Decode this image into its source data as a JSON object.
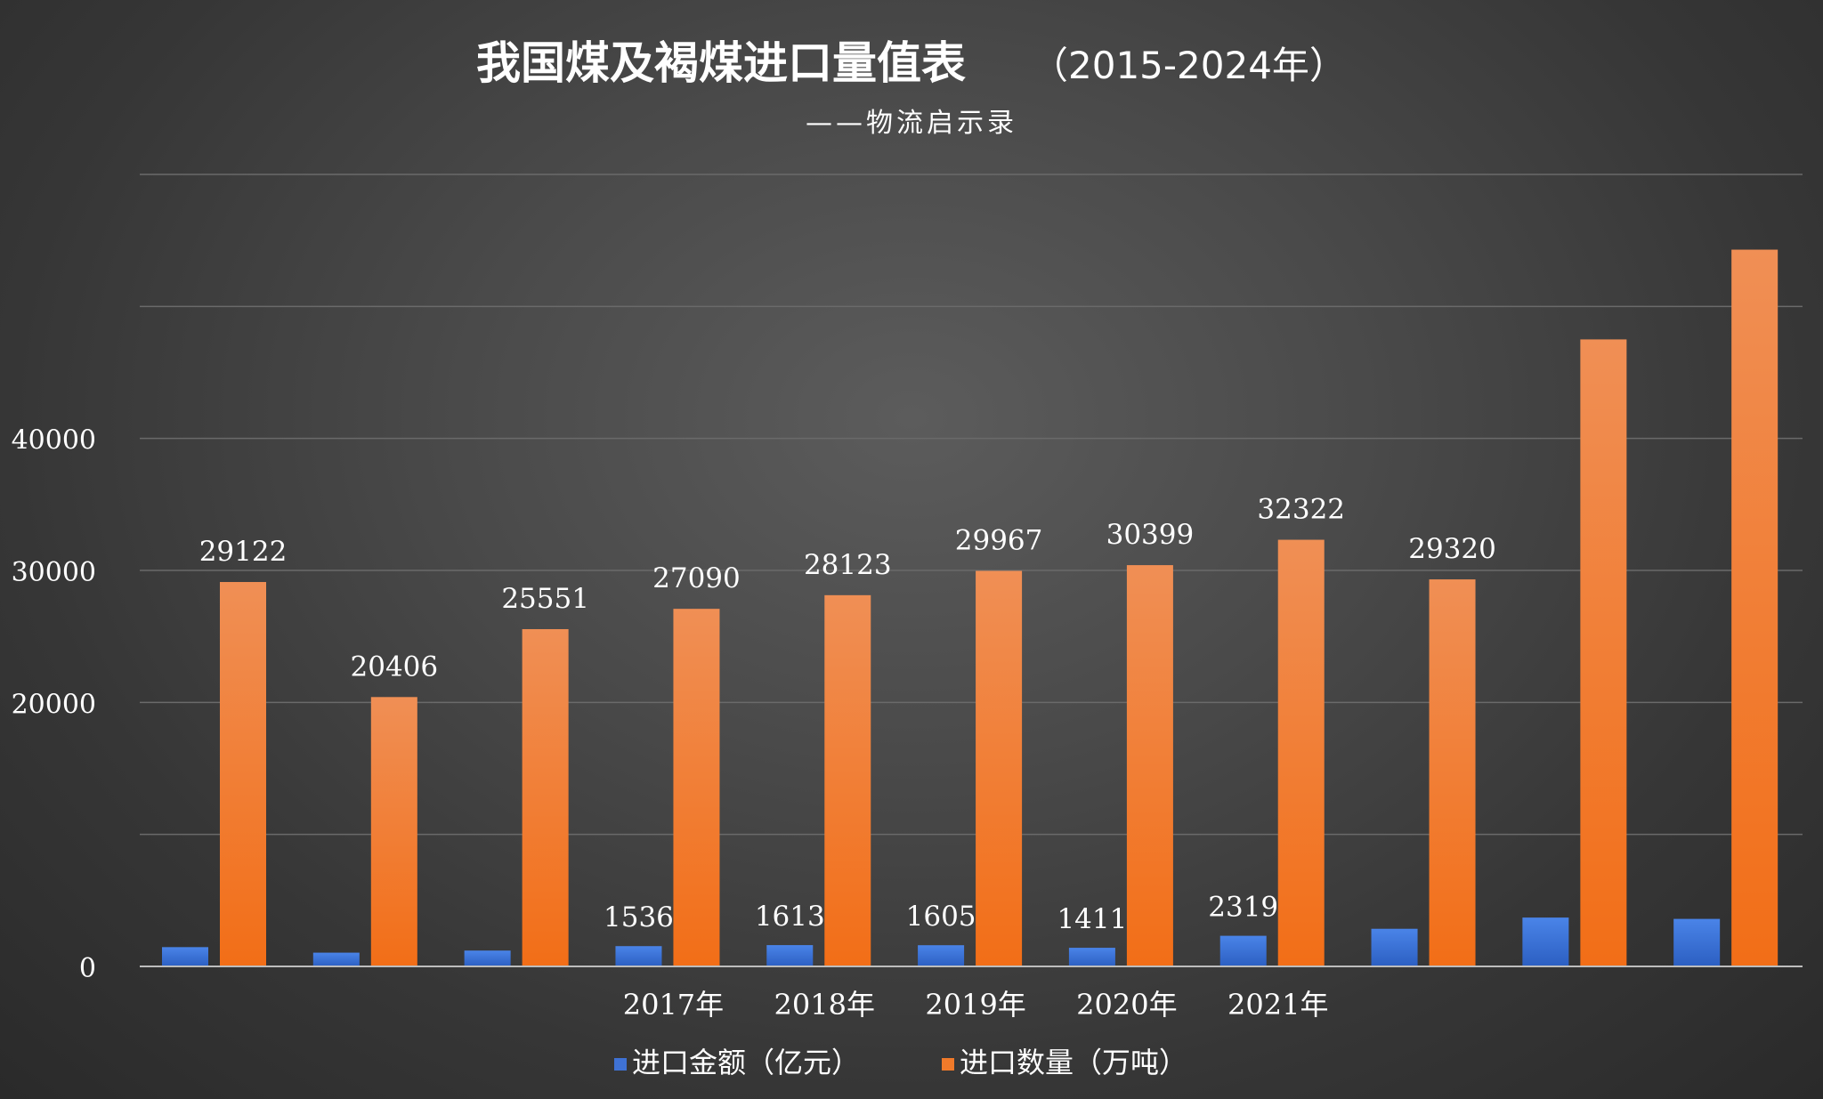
{
  "chart_data": {
    "type": "bar",
    "title": "我国煤及褐煤进口量值表",
    "title_years": "（2015-2024年）",
    "subtitle": "——物流启示录",
    "categories": [
      "",
      "",
      "",
      "2017年",
      "2018年",
      "2019年",
      "2020年",
      "2021年",
      "",
      "",
      ""
    ],
    "series": [
      {
        "name": "进口金额（亿元）",
        "color": "#3f72d4",
        "values": [
          1460,
          1040,
          1200,
          1536,
          1613,
          1605,
          1411,
          2319,
          2850,
          3700,
          3600
        ],
        "labels": [
          "",
          "",
          "",
          "1536",
          "1613",
          "1605",
          "1411",
          "2319",
          "",
          "",
          ""
        ]
      },
      {
        "name": "进口数量（万吨）",
        "color": "#f07a2a",
        "values": [
          29122,
          20406,
          25551,
          27090,
          28123,
          29967,
          30399,
          32322,
          29320,
          47500,
          54300
        ],
        "labels": [
          "29122",
          "20406",
          "25551",
          "27090",
          "28123",
          "29967",
          "30399",
          "32322",
          "29320",
          "",
          ""
        ]
      }
    ],
    "yticks": [
      "0",
      "",
      "20000",
      "30000",
      "40000",
      "",
      ""
    ],
    "ylim": [
      0,
      60000
    ],
    "grid": true,
    "legend_position": "bottom"
  }
}
